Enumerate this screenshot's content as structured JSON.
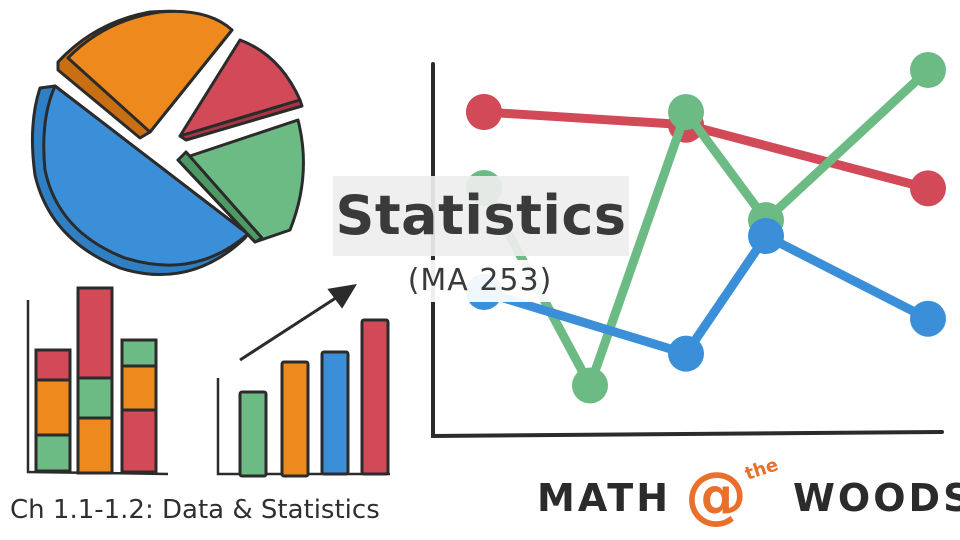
{
  "title": "Statistics",
  "course_code": "(MA 253)",
  "chapter_label": "Ch 1.1-1.2: Data & Statistics",
  "brand": {
    "left_word": "MATH",
    "at_symbol": "@",
    "small_word": "the",
    "right_word": "WOODS"
  },
  "colors": {
    "orange": "#ee8a1d",
    "red": "#d24a58",
    "green": "#6dbb84",
    "blue": "#3a8fd8",
    "ink": "#2b2b2b",
    "brand_orange": "#e8702a"
  },
  "icons": {
    "pie": "pie-chart-icon",
    "stacked_bars": "stacked-bar-chart-icon",
    "growth_bars": "growth-bar-chart-icon",
    "line_chart": "line-chart-icon"
  },
  "chart_data": [
    {
      "type": "pie",
      "slices": [
        {
          "color": "#3a8fd8",
          "value": 50
        },
        {
          "color": "#ee8a1d",
          "value": 25
        },
        {
          "color": "#d24a58",
          "value": 11
        },
        {
          "color": "#6dbb84",
          "value": 14
        }
      ]
    },
    {
      "type": "line",
      "x": [
        1,
        2,
        3,
        4,
        5,
        6
      ],
      "ylim": [
        0,
        100
      ],
      "series": [
        {
          "color": "#d24a58",
          "values": [
            100,
            null,
            null,
            96,
            null,
            76
          ]
        },
        {
          "color": "#6dbb84",
          "values": [
            null,
            null,
            14,
            100,
            66,
            117
          ]
        },
        {
          "color": "#3a8fd8",
          "values": [
            null,
            null,
            null,
            24,
            61,
            35
          ]
        }
      ]
    }
  ]
}
